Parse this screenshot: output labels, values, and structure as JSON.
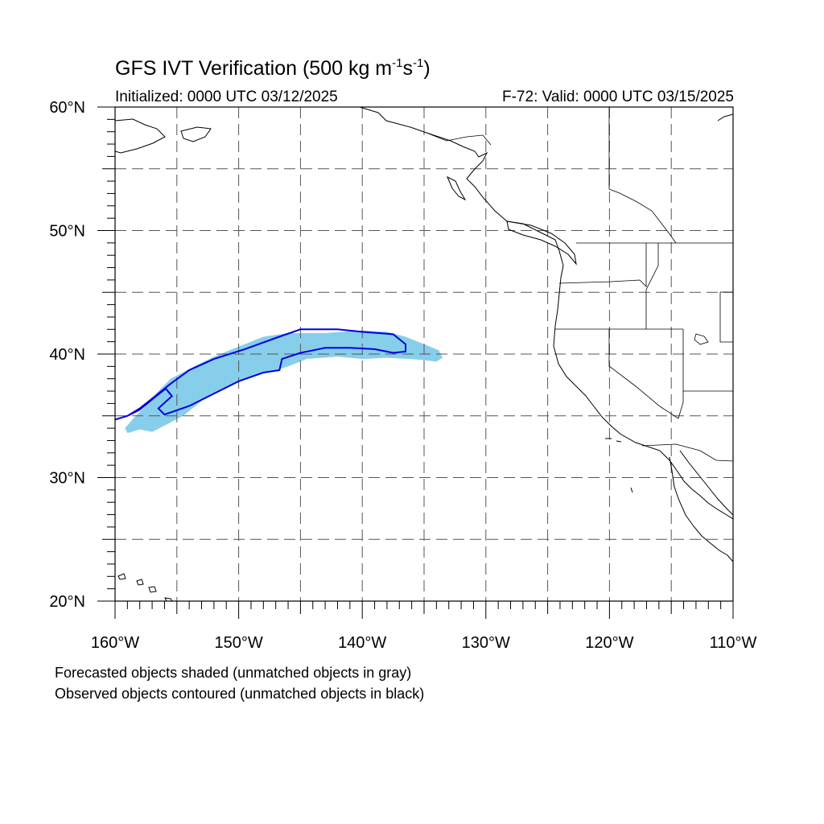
{
  "title": {
    "prefix": "GFS IVT Verification (500 kg m",
    "exp1": "-1",
    "middle": "s",
    "exp2": "-1",
    "suffix": ")"
  },
  "initialized_label": "Initialized: 0000 UTC 03/12/2025",
  "valid_label": "F-72: Valid: 0000 UTC 03/15/2025",
  "footnotes": [
    "Forecasted objects shaded (unmatched objects in gray)",
    "Observed objects contoured (unmatched objects in black)"
  ],
  "map": {
    "lon_range": [
      -160,
      -110
    ],
    "lat_range": [
      20,
      60
    ],
    "lat_labels": [
      {
        "value": 20,
        "text": "20°N"
      },
      {
        "value": 30,
        "text": "30°N"
      },
      {
        "value": 40,
        "text": "40°N"
      },
      {
        "value": 50,
        "text": "50°N"
      },
      {
        "value": 60,
        "text": "60°N"
      }
    ],
    "lon_labels": [
      {
        "value": -160,
        "text": "160°W"
      },
      {
        "value": -150,
        "text": "150°W"
      },
      {
        "value": -140,
        "text": "140°W"
      },
      {
        "value": -130,
        "text": "130°W"
      },
      {
        "value": -120,
        "text": "120°W"
      },
      {
        "value": -110,
        "text": "110°W"
      }
    ],
    "grid_lons": [
      -155,
      -150,
      -145,
      -140,
      -135,
      -130,
      -125,
      -120,
      -115
    ],
    "grid_lats": [
      25,
      30,
      35,
      40,
      45,
      50,
      55
    ],
    "colors": {
      "forecast_fill": "#87ceeb",
      "observed_contour": "#0000e0",
      "coastline": "#000000",
      "grid": "#555555"
    },
    "forecast_object": [
      [
        -159.0,
        33.6
      ],
      [
        -158.0,
        33.9
      ],
      [
        -157.0,
        33.7
      ],
      [
        -156.0,
        34.2
      ],
      [
        -154.5,
        35.0
      ],
      [
        -153.0,
        36.2
      ],
      [
        -151.0,
        37.3
      ],
      [
        -149.0,
        38.2
      ],
      [
        -147.0,
        38.7
      ],
      [
        -146.0,
        39.0
      ],
      [
        -144.5,
        39.6
      ],
      [
        -142.0,
        39.8
      ],
      [
        -140.0,
        39.6
      ],
      [
        -138.0,
        39.7
      ],
      [
        -136.0,
        39.6
      ],
      [
        -134.0,
        39.4
      ],
      [
        -133.5,
        39.7
      ],
      [
        -133.8,
        40.3
      ],
      [
        -135.0,
        40.8
      ],
      [
        -136.5,
        41.4
      ],
      [
        -138.0,
        41.8
      ],
      [
        -140.0,
        41.9
      ],
      [
        -143.0,
        41.7
      ],
      [
        -146.0,
        41.7
      ],
      [
        -148.0,
        41.4
      ],
      [
        -150.0,
        40.6
      ],
      [
        -152.0,
        39.8
      ],
      [
        -154.0,
        38.8
      ],
      [
        -155.5,
        38.0
      ],
      [
        -156.5,
        37.0
      ],
      [
        -157.5,
        35.8
      ],
      [
        -158.5,
        34.8
      ],
      [
        -159.2,
        34.0
      ]
    ],
    "observed_objects": [
      [
        [
          -160.0,
          34.7
        ],
        [
          -159.0,
          35.0
        ],
        [
          -158.0,
          35.6
        ],
        [
          -157.0,
          36.4
        ],
        [
          -155.5,
          37.6
        ],
        [
          -154.0,
          38.7
        ],
        [
          -152.0,
          39.6
        ],
        [
          -149.5,
          40.4
        ],
        [
          -147.0,
          41.3
        ],
        [
          -145.0,
          42.0
        ],
        [
          -142.0,
          42.0
        ],
        [
          -140.0,
          41.8
        ],
        [
          -137.5,
          41.6
        ],
        [
          -136.5,
          40.8
        ],
        [
          -136.5,
          40.2
        ],
        [
          -137.5,
          40.1
        ],
        [
          -139.0,
          40.4
        ],
        [
          -141.0,
          40.5
        ],
        [
          -143.0,
          40.5
        ],
        [
          -145.0,
          40.1
        ],
        [
          -146.5,
          39.6
        ],
        [
          -146.7,
          38.7
        ],
        [
          -148.0,
          38.5
        ],
        [
          -150.0,
          37.8
        ],
        [
          -152.0,
          36.8
        ],
        [
          -154.0,
          35.8
        ],
        [
          -156.0,
          35.1
        ],
        [
          -156.5,
          35.6
        ],
        [
          -155.4,
          36.6
        ],
        [
          -155.9,
          37.2
        ],
        [
          -156.8,
          36.5
        ],
        [
          -158.0,
          35.5
        ],
        [
          -159.0,
          35.0
        ],
        [
          -160.0,
          34.7
        ]
      ]
    ]
  }
}
